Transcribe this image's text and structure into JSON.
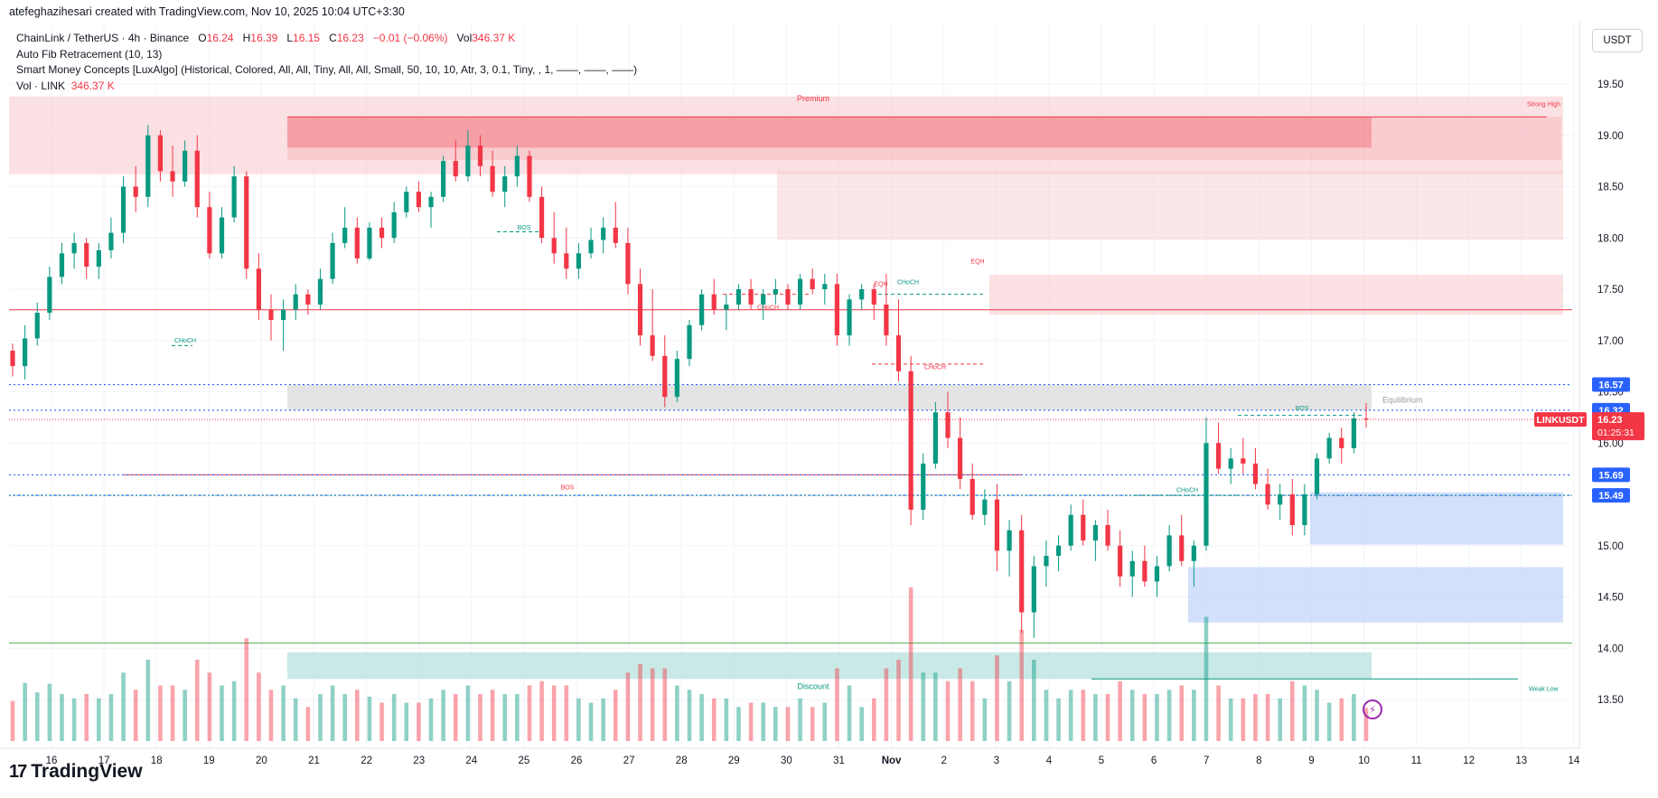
{
  "header": {
    "credit": "atefeghazihesari created with TradingView.com, Nov 10, 2025 10:04 UTC+3:30"
  },
  "legend": {
    "symbol_line": "ChainLink / TetherUS · 4h · Binance",
    "o_label": "O",
    "o_value": "16.24",
    "h_label": "H",
    "h_value": "16.39",
    "l_label": "L",
    "l_value": "16.15",
    "c_label": "C",
    "c_value": "16.23",
    "change": "−0.01 (−0.06%)",
    "vol_label": "Vol",
    "vol_value": "346.37 K",
    "indicator_fib": "Auto Fib Retracement (10, 13)",
    "indicator_smc": "Smart Money Concepts [LuxAlgo] (Historical, Colored, All, All, Tiny, All, All, Small, 50, 10, 10, Atr, 3, 0.1, Tiny, , 1, ——, ——, ——)",
    "vol_line_label": "Vol · LINK",
    "vol_line_value": "346.37 K"
  },
  "currency": "USDT",
  "footer": {
    "logo_mark": "17",
    "logo_text": "TradingView"
  },
  "colors": {
    "up": "#089981",
    "down": "#f23645",
    "premium": "#f7c9cc",
    "discount": "#b2dfdb",
    "fib_blue": "#2962ff",
    "equilibrium": "#d9d9d9",
    "bullish_ob": "#bbd0fb"
  },
  "chart_data": {
    "type": "candlestick",
    "title": "ChainLink / TetherUS · 4h · Binance",
    "y_axis": {
      "ticks": [
        "19.50",
        "19.00",
        "18.50",
        "18.00",
        "17.50",
        "17.00",
        "16.50",
        "16.00",
        "15.50",
        "15.00",
        "14.50",
        "14.00",
        "13.50"
      ],
      "range": [
        13.1,
        20.0
      ]
    },
    "x_axis": {
      "ticks": [
        "16",
        "17",
        "18",
        "19",
        "20",
        "21",
        "22",
        "23",
        "24",
        "25",
        "26",
        "27",
        "28",
        "29",
        "30",
        "31",
        "Nov",
        "2",
        "3",
        "4",
        "5",
        "6",
        "7",
        "8",
        "9",
        "10",
        "11",
        "12",
        "13",
        "14"
      ]
    },
    "price_labels": [
      {
        "text": "16.57",
        "color": "#2962ff"
      },
      {
        "text": "16.32",
        "color": "#2962ff"
      },
      {
        "text": "16.23",
        "color": "#f23645"
      },
      {
        "text": "01:25:31",
        "color": "#f23645"
      },
      {
        "text": "15.69",
        "color": "#2962ff"
      },
      {
        "text": "15.49",
        "color": "#2962ff"
      }
    ],
    "symbol_tag": "LINKUSDT",
    "zone_labels": {
      "premium": "Premium",
      "discount": "Discount",
      "equilibrium": "Equilibrium",
      "strong_high": "Strong High",
      "weak_low": "Weak Low"
    },
    "structure_labels": [
      {
        "text": "CHoCH",
        "color": "#089981"
      },
      {
        "text": "BOS",
        "color": "#089981"
      },
      {
        "text": "CHoCH",
        "color": "#f23645"
      },
      {
        "text": "EQH",
        "color": "#f23645"
      },
      {
        "text": "CHoCH",
        "color": "#089981"
      },
      {
        "text": "CHoCH",
        "color": "#f23645"
      },
      {
        "text": "EQH",
        "color": "#f23645"
      },
      {
        "text": "BOS",
        "color": "#f23645"
      },
      {
        "text": "CHoCH",
        "color": "#089981"
      },
      {
        "text": "BOS",
        "color": "#089981"
      }
    ],
    "ohlc": [
      [
        16.9,
        16.97,
        16.65,
        16.75
      ],
      [
        16.75,
        17.15,
        16.62,
        17.02
      ],
      [
        17.02,
        17.37,
        16.95,
        17.27
      ],
      [
        17.27,
        17.72,
        17.2,
        17.62
      ],
      [
        17.62,
        17.95,
        17.55,
        17.85
      ],
      [
        17.85,
        18.05,
        17.7,
        17.95
      ],
      [
        17.95,
        18.0,
        17.6,
        17.72
      ],
      [
        17.72,
        17.95,
        17.6,
        17.88
      ],
      [
        17.88,
        18.2,
        17.8,
        18.05
      ],
      [
        18.05,
        18.6,
        17.95,
        18.5
      ],
      [
        18.5,
        18.7,
        18.25,
        18.4
      ],
      [
        18.4,
        19.1,
        18.3,
        19.0
      ],
      [
        19.0,
        19.05,
        18.55,
        18.65
      ],
      [
        18.65,
        18.9,
        18.4,
        18.55
      ],
      [
        18.55,
        18.95,
        18.5,
        18.85
      ],
      [
        18.85,
        19.0,
        18.2,
        18.3
      ],
      [
        18.3,
        18.45,
        17.8,
        17.85
      ],
      [
        17.85,
        18.3,
        17.8,
        18.2
      ],
      [
        18.2,
        18.7,
        18.15,
        18.6
      ],
      [
        18.6,
        18.65,
        17.6,
        17.7
      ],
      [
        17.7,
        17.85,
        17.2,
        17.3
      ],
      [
        17.3,
        17.45,
        17.0,
        17.2
      ],
      [
        17.2,
        17.4,
        16.9,
        17.3
      ],
      [
        17.3,
        17.55,
        17.2,
        17.45
      ],
      [
        17.45,
        17.5,
        17.25,
        17.35
      ],
      [
        17.35,
        17.7,
        17.3,
        17.6
      ],
      [
        17.6,
        18.05,
        17.55,
        17.95
      ],
      [
        17.95,
        18.3,
        17.9,
        18.1
      ],
      [
        18.1,
        18.2,
        17.75,
        17.8
      ],
      [
        17.8,
        18.15,
        17.78,
        18.1
      ],
      [
        18.1,
        18.2,
        17.9,
        18.0
      ],
      [
        18.0,
        18.35,
        17.95,
        18.25
      ],
      [
        18.25,
        18.5,
        18.2,
        18.45
      ],
      [
        18.45,
        18.55,
        18.25,
        18.3
      ],
      [
        18.3,
        18.45,
        18.1,
        18.4
      ],
      [
        18.4,
        18.8,
        18.35,
        18.75
      ],
      [
        18.75,
        18.95,
        18.55,
        18.6
      ],
      [
        18.6,
        19.05,
        18.55,
        18.9
      ],
      [
        18.9,
        19.0,
        18.6,
        18.7
      ],
      [
        18.7,
        18.85,
        18.4,
        18.45
      ],
      [
        18.45,
        18.7,
        18.3,
        18.6
      ],
      [
        18.6,
        18.9,
        18.5,
        18.8
      ],
      [
        18.8,
        18.85,
        18.35,
        18.4
      ],
      [
        18.4,
        18.5,
        17.95,
        18.0
      ],
      [
        18.0,
        18.25,
        17.75,
        17.85
      ],
      [
        17.85,
        18.1,
        17.6,
        17.7
      ],
      [
        17.7,
        17.95,
        17.6,
        17.85
      ],
      [
        17.85,
        18.1,
        17.8,
        17.98
      ],
      [
        17.98,
        18.2,
        17.85,
        18.1
      ],
      [
        18.1,
        18.35,
        17.9,
        17.95
      ],
      [
        17.95,
        18.1,
        17.45,
        17.55
      ],
      [
        17.55,
        17.7,
        16.95,
        17.05
      ],
      [
        17.05,
        17.5,
        16.8,
        16.85
      ],
      [
        16.85,
        17.05,
        16.35,
        16.45
      ],
      [
        16.45,
        16.9,
        16.4,
        16.82
      ],
      [
        16.82,
        17.2,
        16.75,
        17.15
      ],
      [
        17.15,
        17.5,
        17.1,
        17.45
      ],
      [
        17.45,
        17.6,
        17.25,
        17.3
      ],
      [
        17.3,
        17.45,
        17.1,
        17.35
      ],
      [
        17.35,
        17.55,
        17.3,
        17.5
      ],
      [
        17.5,
        17.6,
        17.3,
        17.35
      ],
      [
        17.35,
        17.5,
        17.2,
        17.45
      ],
      [
        17.45,
        17.6,
        17.35,
        17.5
      ],
      [
        17.5,
        17.55,
        17.3,
        17.35
      ],
      [
        17.35,
        17.65,
        17.3,
        17.6
      ],
      [
        17.6,
        17.7,
        17.45,
        17.5
      ],
      [
        17.5,
        17.65,
        17.35,
        17.55
      ],
      [
        17.55,
        17.65,
        16.95,
        17.05
      ],
      [
        17.05,
        17.45,
        16.95,
        17.4
      ],
      [
        17.4,
        17.55,
        17.3,
        17.5
      ],
      [
        17.5,
        17.55,
        17.2,
        17.35
      ],
      [
        17.35,
        17.65,
        16.95,
        17.05
      ],
      [
        17.05,
        17.4,
        16.6,
        16.7
      ],
      [
        16.7,
        16.85,
        15.2,
        15.35
      ],
      [
        15.35,
        15.9,
        15.25,
        15.8
      ],
      [
        15.8,
        16.4,
        15.75,
        16.3
      ],
      [
        16.3,
        16.5,
        15.95,
        16.05
      ],
      [
        16.05,
        16.25,
        15.55,
        15.65
      ],
      [
        15.65,
        15.8,
        15.25,
        15.3
      ],
      [
        15.3,
        15.55,
        15.2,
        15.45
      ],
      [
        15.45,
        15.6,
        14.75,
        14.95
      ],
      [
        14.95,
        15.25,
        14.7,
        15.15
      ],
      [
        15.15,
        15.3,
        14.15,
        14.35
      ],
      [
        14.35,
        14.9,
        14.1,
        14.8
      ],
      [
        14.8,
        15.05,
        14.6,
        14.9
      ],
      [
        14.9,
        15.1,
        14.75,
        15.0
      ],
      [
        15.0,
        15.4,
        14.95,
        15.3
      ],
      [
        15.3,
        15.45,
        15.0,
        15.05
      ],
      [
        15.05,
        15.25,
        14.85,
        15.2
      ],
      [
        15.2,
        15.35,
        14.95,
        15.0
      ],
      [
        15.0,
        15.15,
        14.6,
        14.7
      ],
      [
        14.7,
        14.95,
        14.5,
        14.85
      ],
      [
        14.85,
        15.0,
        14.6,
        14.65
      ],
      [
        14.65,
        14.9,
        14.5,
        14.8
      ],
      [
        14.8,
        15.2,
        14.75,
        15.1
      ],
      [
        15.1,
        15.3,
        14.8,
        14.85
      ],
      [
        14.85,
        15.05,
        14.6,
        15.0
      ],
      [
        15.0,
        16.25,
        14.95,
        16.0
      ],
      [
        16.0,
        16.2,
        15.7,
        15.75
      ],
      [
        15.75,
        15.95,
        15.6,
        15.85
      ],
      [
        15.85,
        16.05,
        15.7,
        15.8
      ],
      [
        15.8,
        15.95,
        15.55,
        15.6
      ],
      [
        15.6,
        15.75,
        15.35,
        15.4
      ],
      [
        15.4,
        15.6,
        15.25,
        15.5
      ],
      [
        15.5,
        15.65,
        15.1,
        15.2
      ],
      [
        15.2,
        15.6,
        15.1,
        15.5
      ],
      [
        15.5,
        15.9,
        15.45,
        15.85
      ],
      [
        15.85,
        16.1,
        15.8,
        16.05
      ],
      [
        16.05,
        16.15,
        15.8,
        15.95
      ],
      [
        15.95,
        16.3,
        15.9,
        16.24
      ],
      [
        16.24,
        16.39,
        16.15,
        16.23
      ]
    ],
    "volume_unit": "K"
  }
}
